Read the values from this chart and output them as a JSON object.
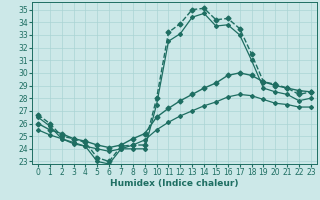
{
  "xlabel": "Humidex (Indice chaleur)",
  "bg_color": "#cce8e8",
  "line_color": "#1e6e62",
  "grid_color": "#aad4d4",
  "xlim": [
    -0.5,
    23.5
  ],
  "ylim": [
    22.8,
    35.6
  ],
  "xticks": [
    0,
    1,
    2,
    3,
    4,
    5,
    6,
    7,
    8,
    9,
    10,
    11,
    12,
    13,
    14,
    15,
    16,
    17,
    18,
    19,
    20,
    21,
    22,
    23
  ],
  "yticks": [
    23,
    24,
    25,
    26,
    27,
    28,
    29,
    30,
    31,
    32,
    33,
    34,
    35
  ],
  "lines": [
    {
      "x": [
        0,
        1,
        2,
        3,
        4,
        5,
        6,
        7,
        8,
        9,
        10,
        11,
        12,
        13,
        14,
        15,
        16,
        17,
        18,
        19,
        20,
        21,
        22,
        23
      ],
      "y": [
        26.7,
        26.0,
        25.0,
        24.8,
        24.5,
        23.3,
        23.0,
        24.2,
        24.3,
        24.3,
        28.0,
        33.2,
        33.9,
        35.0,
        35.1,
        34.2,
        34.3,
        33.5,
        31.5,
        29.3,
        29.1,
        28.8,
        28.3,
        28.5
      ],
      "marker": "D",
      "markersize": 2.5,
      "linewidth": 1.0,
      "linestyle": "--"
    },
    {
      "x": [
        0,
        1,
        2,
        3,
        4,
        5,
        6,
        7,
        8,
        9,
        10,
        11,
        12,
        13,
        14,
        15,
        16,
        17,
        18,
        19,
        20,
        21,
        22,
        23
      ],
      "y": [
        26.5,
        25.8,
        24.8,
        24.5,
        24.2,
        23.0,
        22.8,
        24.0,
        24.0,
        24.0,
        27.5,
        32.5,
        33.1,
        34.4,
        34.7,
        33.7,
        33.8,
        33.0,
        31.0,
        28.8,
        28.5,
        28.3,
        27.8,
        28.0
      ],
      "marker": "D",
      "markersize": 2.0,
      "linewidth": 0.9,
      "linestyle": "-"
    },
    {
      "x": [
        0,
        1,
        2,
        3,
        4,
        5,
        6,
        7,
        8,
        9,
        10,
        11,
        12,
        13,
        14,
        15,
        16,
        17,
        18,
        19,
        20,
        21,
        22,
        23
      ],
      "y": [
        26.0,
        25.5,
        25.2,
        24.8,
        24.6,
        24.3,
        24.1,
        24.3,
        24.8,
        25.2,
        26.5,
        27.2,
        27.8,
        28.3,
        28.8,
        29.2,
        29.8,
        30.0,
        29.8,
        29.3,
        29.0,
        28.8,
        28.6,
        28.5
      ],
      "marker": "D",
      "markersize": 2.5,
      "linewidth": 1.0,
      "linestyle": "-"
    },
    {
      "x": [
        0,
        1,
        2,
        3,
        4,
        5,
        6,
        7,
        8,
        9,
        10,
        11,
        12,
        13,
        14,
        15,
        16,
        17,
        18,
        19,
        20,
        21,
        22,
        23
      ],
      "y": [
        25.5,
        25.1,
        24.8,
        24.4,
        24.2,
        24.0,
        23.8,
        24.0,
        24.3,
        24.7,
        25.5,
        26.1,
        26.6,
        27.0,
        27.4,
        27.7,
        28.1,
        28.3,
        28.2,
        27.9,
        27.6,
        27.5,
        27.3,
        27.3
      ],
      "marker": "D",
      "markersize": 2.0,
      "linewidth": 0.9,
      "linestyle": "-"
    }
  ]
}
